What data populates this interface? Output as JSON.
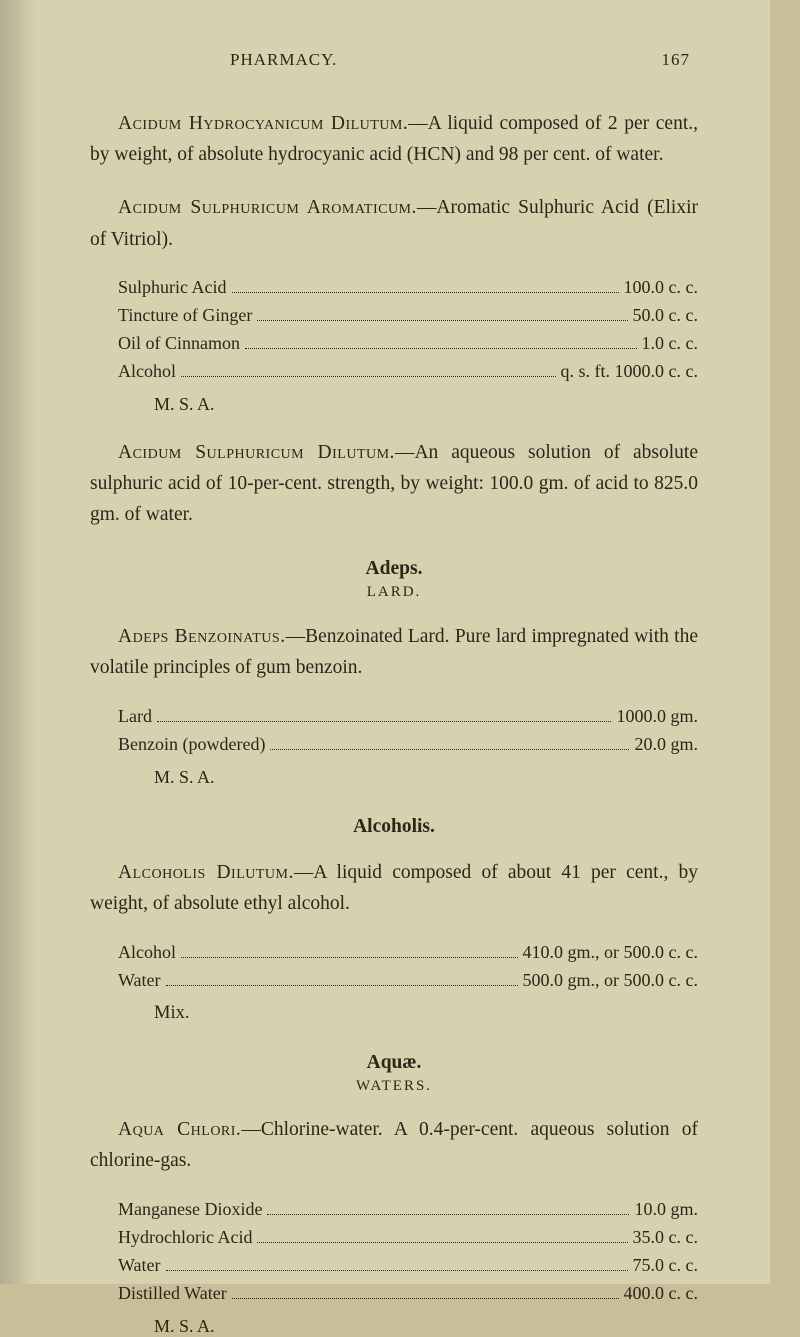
{
  "header": {
    "title": "PHARMACY.",
    "page_number": "167"
  },
  "entries": [
    {
      "title_sc": "Acidum Hydrocyanicum Dilutum.",
      "rest": "—A liquid composed of 2 per cent., by weight, of absolute hydrocyanic acid (HCN) and 98 per cent. of water."
    },
    {
      "title_sc": "Acidum Sulphuricum Aromaticum.",
      "rest": "—Aromatic Sulphuric Acid (Elixir of Vitriol).",
      "ingredients": [
        {
          "name": "Sulphuric Acid",
          "amount": "100.0 c. c."
        },
        {
          "name": "Tincture of Ginger",
          "amount": "50.0 c. c."
        },
        {
          "name": "Oil of Cinnamon",
          "amount": "1.0 c. c."
        },
        {
          "name": "Alcohol",
          "suffix": "q. s. ft.",
          "amount": "1000.0 c. c."
        }
      ],
      "msa": "M. S. A."
    },
    {
      "title_sc": "Acidum Sulphuricum Dilutum.",
      "rest": "—An aqueous solution of absolute sulphuric acid of 10-per-cent. strength, by weight: 100.0 gm. of acid to 825.0 gm. of water."
    }
  ],
  "sections": [
    {
      "head": "Adeps.",
      "sub": "LARD.",
      "entries": [
        {
          "title_sc": "Adeps Benzoinatus.",
          "rest": "—Benzoinated Lard. Pure lard impregnated with the volatile principles of gum benzoin.",
          "ingredients": [
            {
              "name": "Lard",
              "amount": "1000.0 gm."
            },
            {
              "name": "Benzoin (powdered)",
              "amount": "20.0 gm."
            }
          ],
          "msa": "M. S. A."
        }
      ]
    },
    {
      "head": "Alcoholis.",
      "entries": [
        {
          "title_sc": "Alcoholis Dilutum.",
          "rest": "—A liquid composed of about 41 per cent., by weight, of absolute ethyl alcohol.",
          "ingredients": [
            {
              "name": "Alcohol",
              "amount": "410.0 gm., or 500.0 c. c."
            },
            {
              "name": "Water",
              "amount": "500.0 gm., or 500.0 c. c."
            }
          ],
          "mix": "Mix."
        }
      ]
    },
    {
      "head": "Aquæ.",
      "sub": "WATERS.",
      "entries": [
        {
          "title_sc": "Aqua Chlori.",
          "rest": "—Chlorine-water. A 0.4-per-cent. aqueous solution of chlorine-gas.",
          "ingredients": [
            {
              "name": "Manganese Dioxide",
              "amount": "10.0 gm."
            },
            {
              "name": "Hydrochloric Acid",
              "amount": "35.0 c. c."
            },
            {
              "name": "Water",
              "amount": "75.0 c. c."
            },
            {
              "name": "Distilled Water",
              "amount": "400.0 c. c."
            }
          ],
          "msa": "M. S. A."
        }
      ]
    }
  ]
}
